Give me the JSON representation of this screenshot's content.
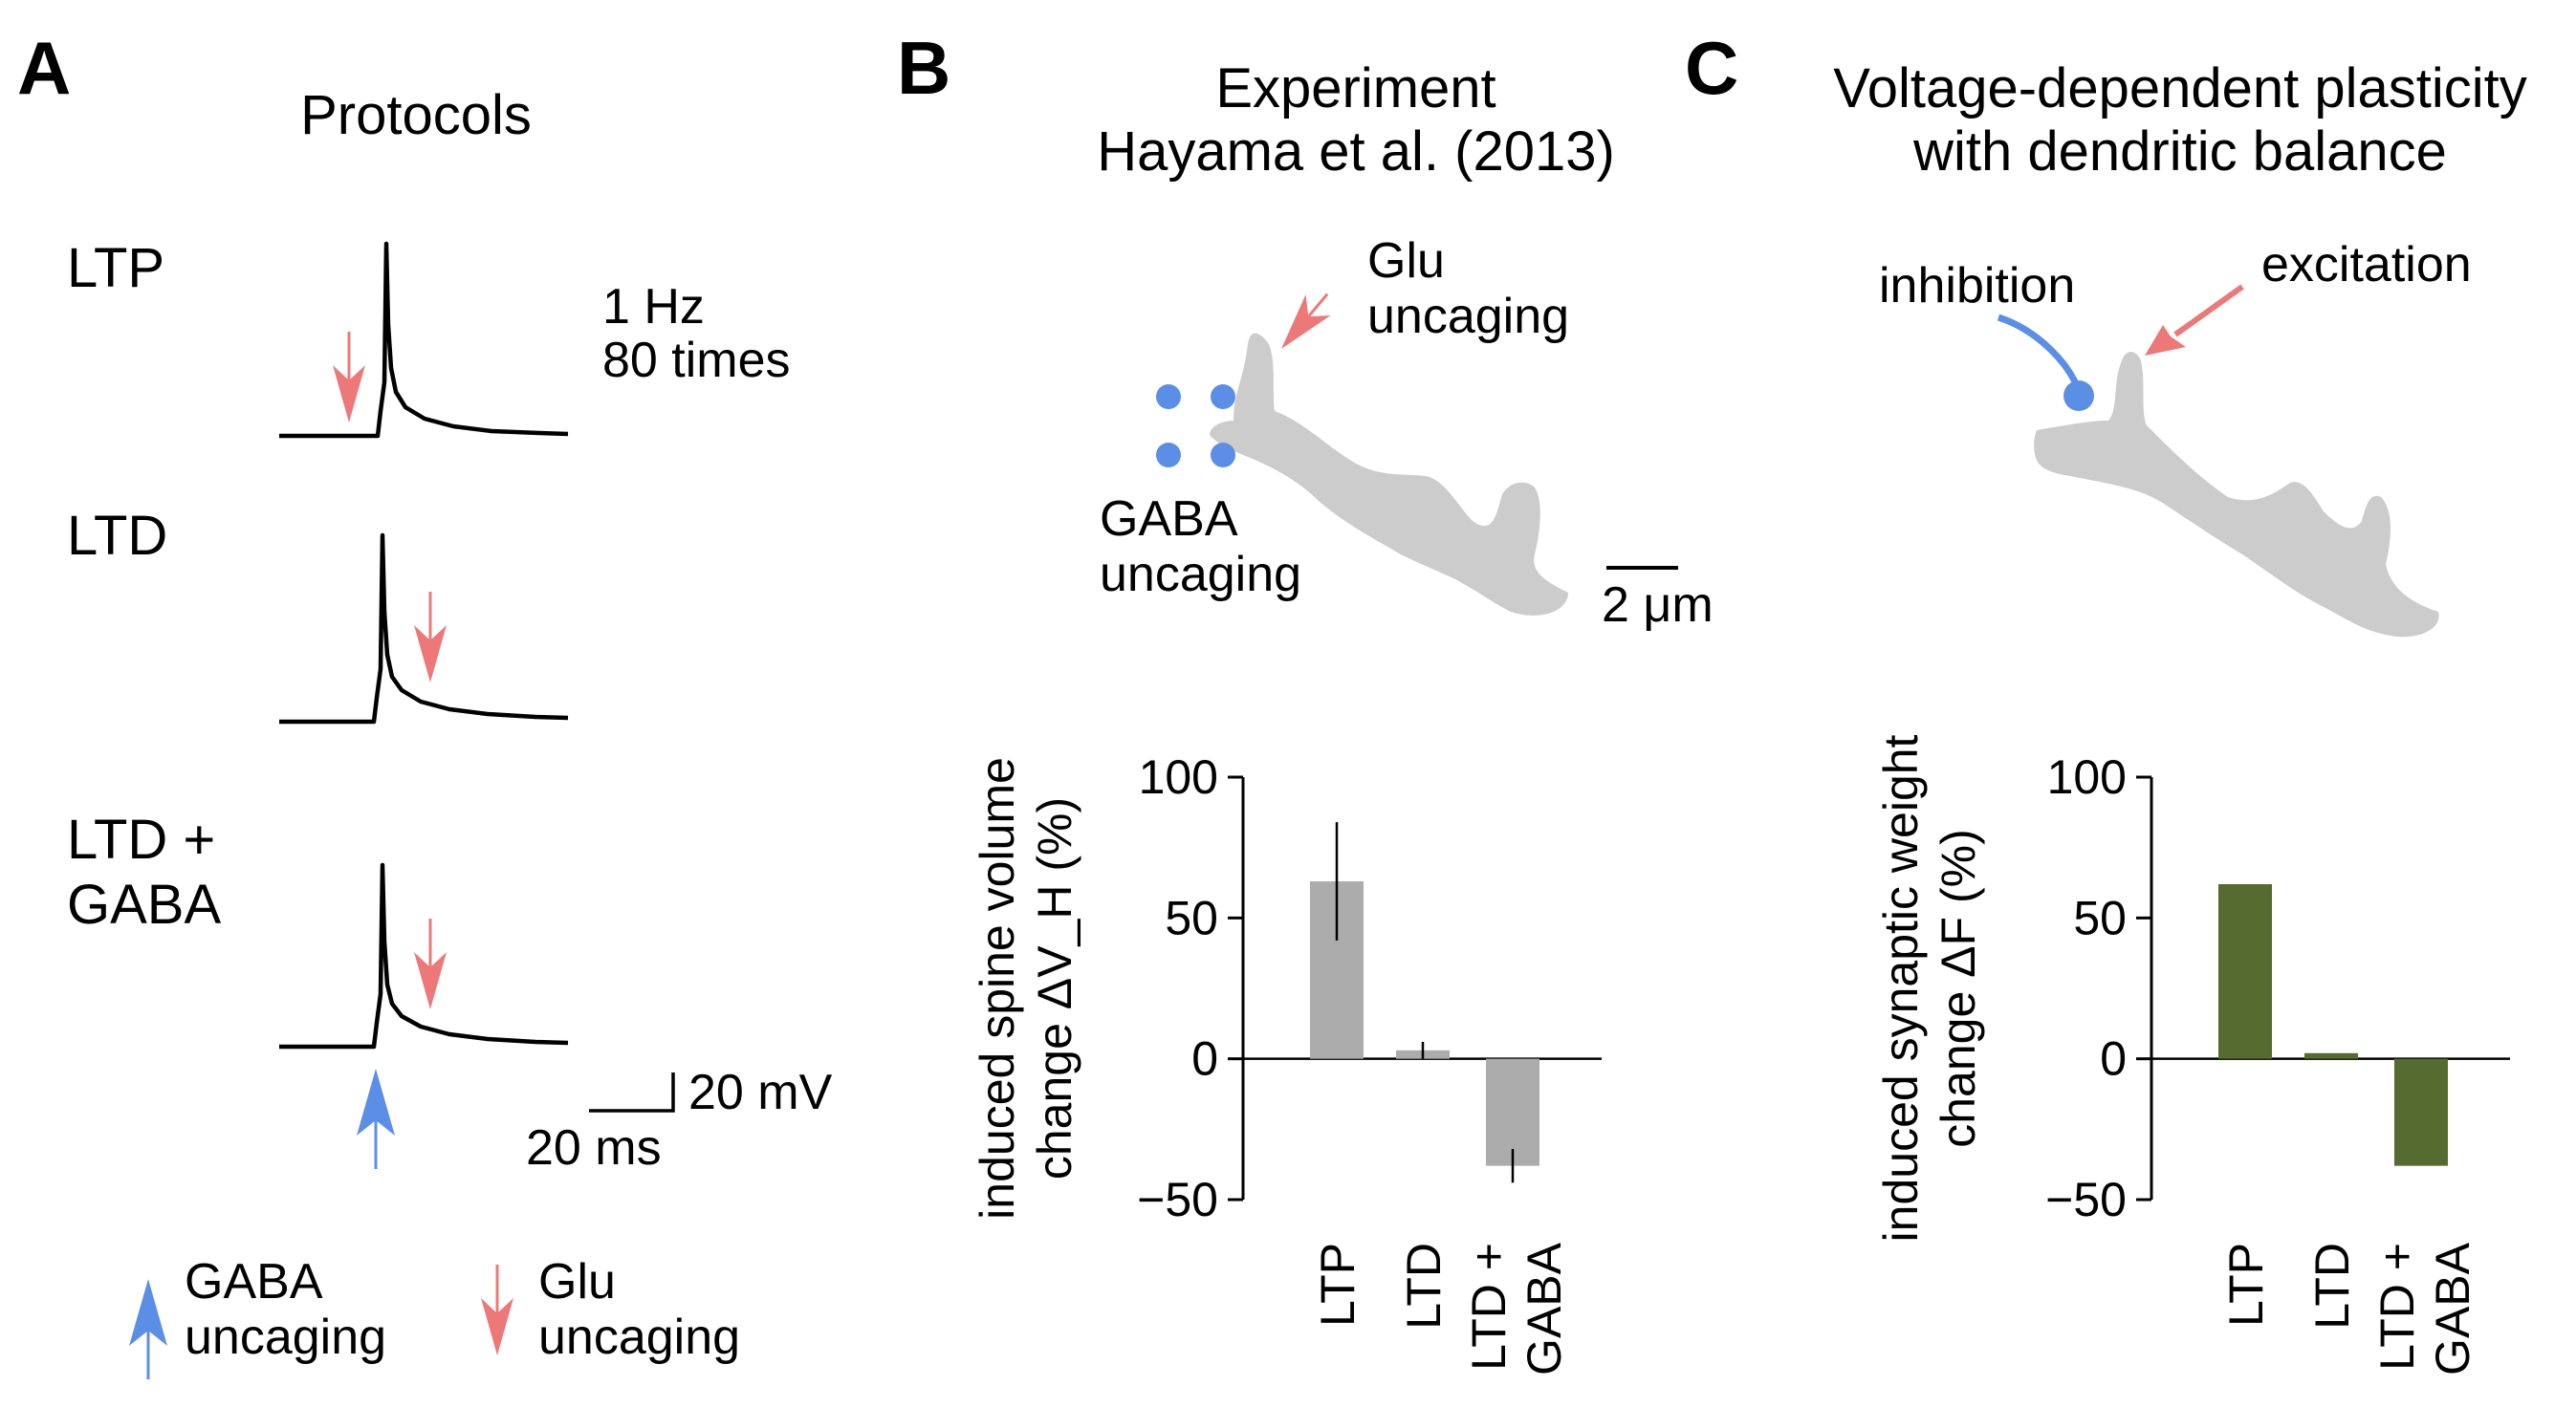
{
  "panels": {
    "A": {
      "letter": "A",
      "title": "Protocols"
    },
    "B": {
      "letter": "B",
      "title_line1": "Experiment",
      "title_line2": "Hayama et al. (2013)"
    },
    "C": {
      "letter": "C",
      "title_line1": "Voltage-dependent plasticity",
      "title_line2": "with dendritic balance"
    }
  },
  "protocols": {
    "ltp_label": "LTP",
    "ltd_label": "LTD",
    "ltd_gaba_label_line1": "LTD +",
    "ltd_gaba_label_line2": "GABA",
    "stim_line1": "1 Hz",
    "stim_line2": "80 times",
    "scalebar_voltage": "20 mV",
    "scalebar_time": "20 ms"
  },
  "legend": {
    "gaba_line1": "GABA",
    "gaba_line2": "uncaging",
    "glu_line1": "Glu",
    "glu_line2": "uncaging"
  },
  "dendrite_B": {
    "glu_line1": "Glu",
    "glu_line2": "uncaging",
    "gaba_line1": "GABA",
    "gaba_line2": "uncaging",
    "scalebar": "2 μm"
  },
  "dendrite_C": {
    "inhibition": "inhibition",
    "excitation": "excitation"
  },
  "colors": {
    "gaba_blue": "#5b8fe6",
    "glu_red": "#ec7878",
    "dendrite_gray": "#cccccc",
    "bar_gray": "#acacac",
    "bar_green": "#556b2f"
  },
  "chart_data": [
    {
      "type": "bar",
      "ylabel_line1": "induced spine volume",
      "ylabel_line2": "change ΔV_H (%)",
      "categories": [
        "LTP",
        "LTD",
        "LTD + GABA"
      ],
      "category_line1": [
        "LTP",
        "LTD",
        "LTD +"
      ],
      "category_line2": [
        "",
        "",
        "GABA"
      ],
      "values": [
        63,
        3,
        -38
      ],
      "error": [
        21,
        3,
        6
      ],
      "ylim": [
        -50,
        100
      ],
      "yticks": [
        "100",
        "50",
        "0",
        "−50"
      ],
      "ytick_values": [
        100,
        50,
        0,
        -50
      ]
    },
    {
      "type": "bar",
      "ylabel_line1": "induced synaptic weight",
      "ylabel_line2": "change ΔF (%)",
      "categories": [
        "LTP",
        "LTD",
        "LTD + GABA"
      ],
      "category_line1": [
        "LTP",
        "LTD",
        "LTD +"
      ],
      "category_line2": [
        "",
        "",
        "GABA"
      ],
      "values": [
        62,
        2,
        -38
      ],
      "ylim": [
        -50,
        100
      ],
      "yticks": [
        "100",
        "50",
        "0",
        "−50"
      ],
      "ytick_values": [
        100,
        50,
        0,
        -50
      ]
    }
  ]
}
